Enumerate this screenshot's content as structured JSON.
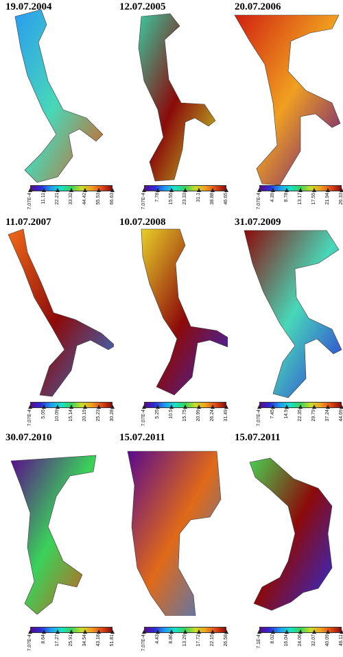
{
  "panels": [
    {
      "date": "19.07.2004",
      "ticks": [
        "7.07E-4",
        "11.11",
        "22.21",
        "33.32",
        "44.42",
        "55.53",
        "66.63"
      ]
    },
    {
      "date": "12.07.2005",
      "ticks": [
        "7.07E-4",
        "7.78",
        "15.55",
        "23.33",
        "31.1",
        "38.88",
        "46.65"
      ]
    },
    {
      "date": "20.07.2006",
      "ticks": [
        "7.07E-4",
        "4.39",
        "8.78",
        "13.17",
        "17.55",
        "21.94",
        "26.33"
      ]
    },
    {
      "date": "11.07.2007",
      "ticks": [
        "7.07E-4",
        "5.05",
        "10.09",
        "15.14",
        "20.19",
        "25.23",
        "30.28"
      ]
    },
    {
      "date": "10.07.2008",
      "ticks": [
        "7.07E-4",
        "5.25",
        "10.5",
        "15.75",
        "20.99",
        "26.24",
        "31.49"
      ]
    },
    {
      "date": "31.07.2009",
      "ticks": [
        "7.07E-4",
        "7.45",
        "14.9",
        "22.35",
        "29.79",
        "37.24",
        "44.69"
      ]
    },
    {
      "date": "30.07.2010",
      "ticks": [
        "7.07E-4",
        "8.64",
        "17.27",
        "25.91",
        "34.54",
        "43.18",
        "51.81"
      ]
    },
    {
      "date": "15.07.2011",
      "ticks": [
        "7.07E-4",
        "4.43",
        "8.86",
        "13.29",
        "17.72",
        "22.15",
        "26.58"
      ]
    },
    {
      "date": "15.07.2011",
      "ticks": [
        "7.1E-4",
        "8.02",
        "16.04",
        "24.06",
        "32.07",
        "40.09",
        "48.11"
      ]
    }
  ]
}
